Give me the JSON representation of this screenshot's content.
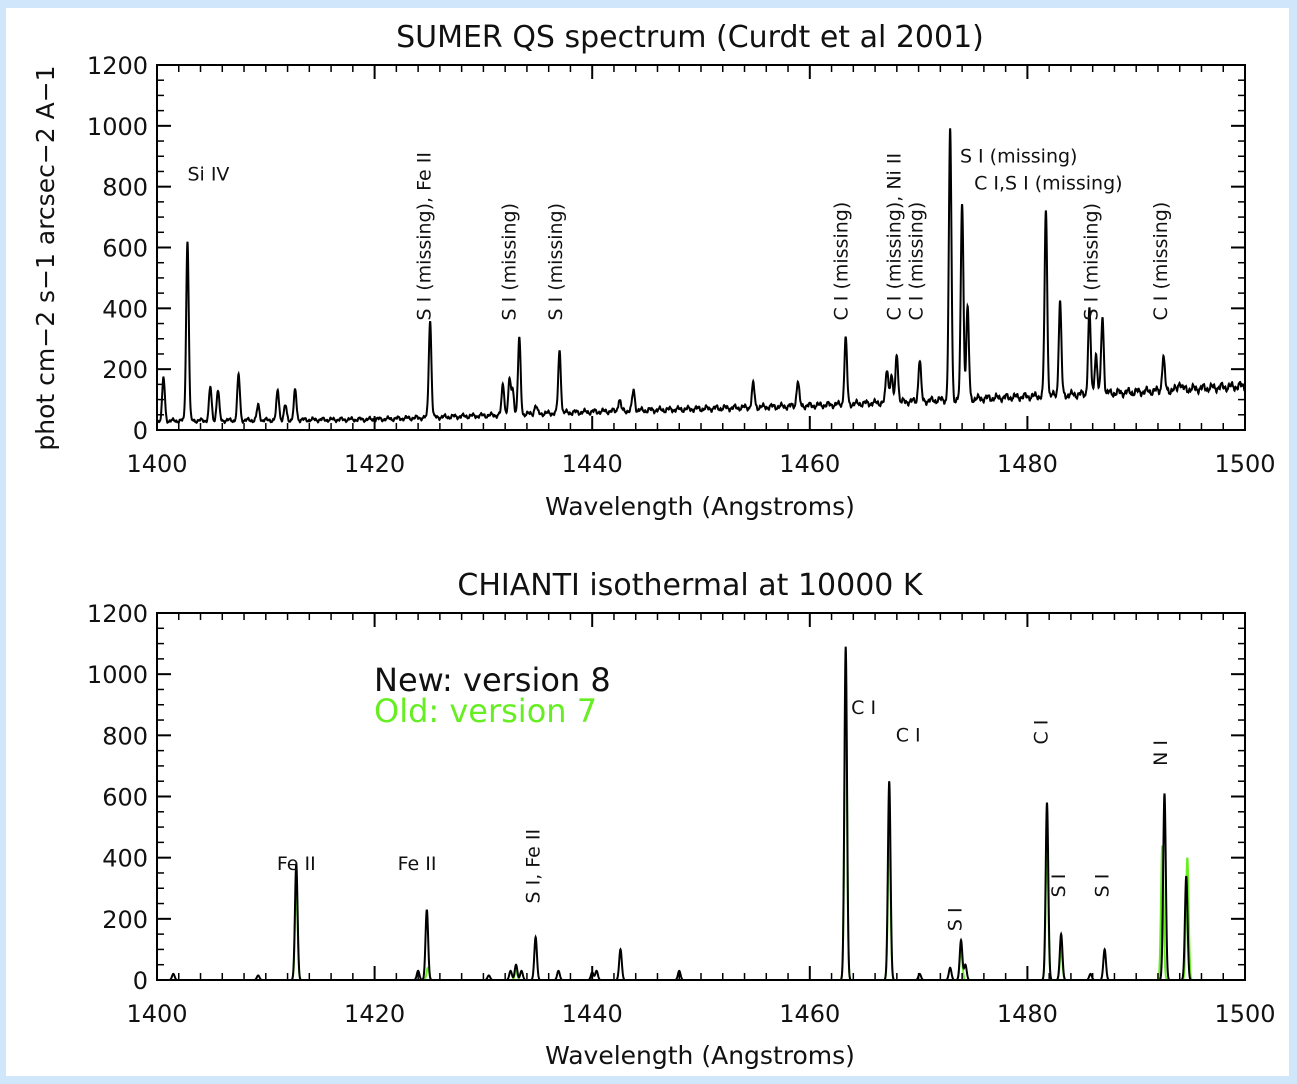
{
  "colors": {
    "new": "#000000",
    "old": "#66ee22",
    "background": "#cfe6fb",
    "frame": "#ffffff"
  },
  "ylabel": "phot cm−2 s−1 arcsec−2 A−1",
  "chart_data": [
    {
      "type": "line",
      "title": "SUMER QS spectrum (Curdt et al 2001)",
      "xlabel": "Wavelength (Angstroms)",
      "xlim": [
        1400,
        1500
      ],
      "ylim": [
        0,
        1200
      ],
      "x_ticks": [
        1400,
        1420,
        1440,
        1460,
        1480,
        1500
      ],
      "y_ticks": [
        0,
        200,
        400,
        600,
        800,
        1000,
        1200
      ],
      "baseline": [
        [
          1400,
          30
        ],
        [
          1420,
          35
        ],
        [
          1440,
          60
        ],
        [
          1460,
          80
        ],
        [
          1470,
          95
        ],
        [
          1480,
          110
        ],
        [
          1490,
          125
        ],
        [
          1500,
          145
        ]
      ],
      "peaks": [
        [
          1400.6,
          170
        ],
        [
          1402.8,
          620
        ],
        [
          1404.9,
          140
        ],
        [
          1405.6,
          130
        ],
        [
          1407.5,
          180
        ],
        [
          1409.3,
          80
        ],
        [
          1411.1,
          130
        ],
        [
          1411.8,
          80
        ],
        [
          1412.7,
          130
        ],
        [
          1425.1,
          360
        ],
        [
          1431.8,
          150
        ],
        [
          1432.4,
          160
        ],
        [
          1432.7,
          130
        ],
        [
          1433.3,
          300
        ],
        [
          1434.8,
          80
        ],
        [
          1437.0,
          260
        ],
        [
          1442.5,
          100
        ],
        [
          1443.8,
          130
        ],
        [
          1454.8,
          150
        ],
        [
          1458.9,
          160
        ],
        [
          1463.3,
          300
        ],
        [
          1467.1,
          200
        ],
        [
          1467.5,
          180
        ],
        [
          1468.0,
          250
        ],
        [
          1470.1,
          230
        ],
        [
          1471.8,
          100
        ],
        [
          1472.9,
          980
        ],
        [
          1474.0,
          750
        ],
        [
          1474.5,
          400
        ],
        [
          1481.7,
          720
        ],
        [
          1483.0,
          420
        ],
        [
          1485.7,
          390
        ],
        [
          1486.3,
          250
        ],
        [
          1486.9,
          370
        ],
        [
          1492.5,
          240
        ],
        [
          1494.0,
          160
        ]
      ],
      "annotations": [
        {
          "text": "Si IV",
          "x": 1402.8,
          "y": 820,
          "orient": "horizontal"
        },
        {
          "text": "S I (missing), Fe II",
          "x": 1424.5,
          "y": 360,
          "orient": "vertical"
        },
        {
          "text": "S I (missing)",
          "x": 1432.3,
          "y": 360,
          "orient": "vertical"
        },
        {
          "text": "S I (missing)",
          "x": 1436.6,
          "y": 360,
          "orient": "vertical"
        },
        {
          "text": "C I (missing)",
          "x": 1462.8,
          "y": 360,
          "orient": "vertical"
        },
        {
          "text": "C I (missing), Ni II",
          "x": 1467.7,
          "y": 360,
          "orient": "vertical"
        },
        {
          "text": "C I (missing)",
          "x": 1469.7,
          "y": 360,
          "orient": "vertical"
        },
        {
          "text": "S I (missing)",
          "x": 1473.8,
          "y": 880,
          "orient": "horizontal"
        },
        {
          "text": "C I,S I (missing)",
          "x": 1475.1,
          "y": 790,
          "orient": "horizontal"
        },
        {
          "text": "S I (missing)",
          "x": 1485.8,
          "y": 360,
          "orient": "vertical"
        },
        {
          "text": "C I (missing)",
          "x": 1492.2,
          "y": 360,
          "orient": "vertical"
        }
      ]
    },
    {
      "type": "line",
      "title": "CHIANTI  isothermal at 10000 K",
      "xlabel": "Wavelength (Angstroms)",
      "xlim": [
        1400,
        1500
      ],
      "ylim": [
        0,
        1200
      ],
      "x_ticks": [
        1400,
        1420,
        1440,
        1460,
        1480,
        1500
      ],
      "y_ticks": [
        0,
        200,
        400,
        600,
        800,
        1000,
        1200
      ],
      "legend": [
        "New: version 8",
        "Old: version 7"
      ],
      "series": [
        {
          "name": "New: version 8",
          "peaks": [
            [
              1401.5,
              20
            ],
            [
              1409.3,
              15
            ],
            [
              1412.8,
              380
            ],
            [
              1424.0,
              30
            ],
            [
              1424.8,
              230
            ],
            [
              1430.5,
              15
            ],
            [
              1432.5,
              30
            ],
            [
              1433.0,
              50
            ],
            [
              1433.5,
              30
            ],
            [
              1434.8,
              140
            ],
            [
              1436.9,
              30
            ],
            [
              1440.0,
              25
            ],
            [
              1440.4,
              30
            ],
            [
              1442.6,
              100
            ],
            [
              1448.0,
              30
            ],
            [
              1463.3,
              1090
            ],
            [
              1467.3,
              650
            ],
            [
              1470.1,
              20
            ],
            [
              1472.9,
              40
            ],
            [
              1473.9,
              130
            ],
            [
              1474.3,
              50
            ],
            [
              1481.8,
              580
            ],
            [
              1483.1,
              150
            ],
            [
              1485.8,
              20
            ],
            [
              1487.1,
              100
            ],
            [
              1492.6,
              610
            ],
            [
              1494.6,
              340
            ]
          ]
        },
        {
          "name": "Old: version 7",
          "peaks": [
            [
              1412.8,
              310
            ],
            [
              1424.9,
              40
            ],
            [
              1433.0,
              30
            ],
            [
              1463.3,
              1000
            ],
            [
              1467.3,
              500
            ],
            [
              1473.9,
              100
            ],
            [
              1481.8,
              450
            ],
            [
              1483.1,
              100
            ],
            [
              1492.4,
              440
            ],
            [
              1494.7,
              400
            ]
          ]
        }
      ],
      "annotations": [
        {
          "text": "Fe II",
          "x": 1412.8,
          "y": 360,
          "orient": "horizontal"
        },
        {
          "text": "Fe II",
          "x": 1423.9,
          "y": 360,
          "orient": "horizontal"
        },
        {
          "text": "S I, Fe II",
          "x": 1434.5,
          "y": 250,
          "orient": "vertical"
        },
        {
          "text": "C I",
          "x": 1463.8,
          "y": 870,
          "orient": "horizontal"
        },
        {
          "text": "C I",
          "x": 1467.9,
          "y": 780,
          "orient": "horizontal"
        },
        {
          "text": "S I",
          "x": 1473.3,
          "y": 160,
          "orient": "vertical"
        },
        {
          "text": "C I",
          "x": 1481.2,
          "y": 770,
          "orient": "vertical"
        },
        {
          "text": "S I",
          "x": 1482.8,
          "y": 270,
          "orient": "vertical"
        },
        {
          "text": "S I",
          "x": 1486.8,
          "y": 270,
          "orient": "vertical"
        },
        {
          "text": "N I",
          "x": 1492.2,
          "y": 700,
          "orient": "vertical"
        }
      ]
    }
  ]
}
